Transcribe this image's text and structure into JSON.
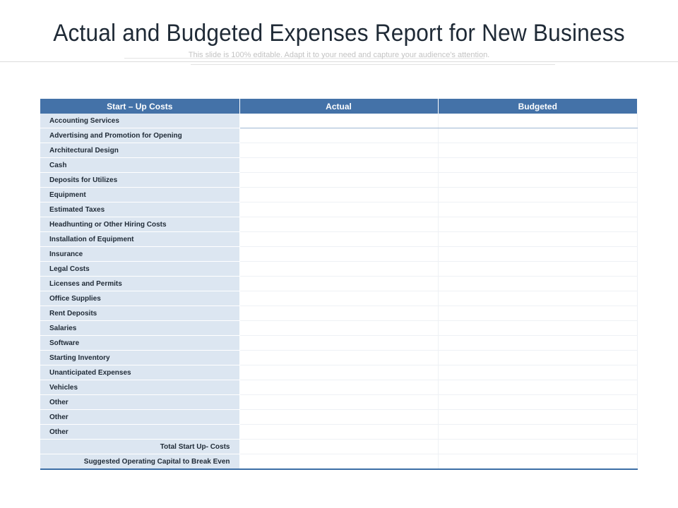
{
  "slide": {
    "title": "Actual and Budgeted Expenses Report for New Business",
    "subtitle": "This slide is 100% editable. Adapt it to your need and capture your audience's attention."
  },
  "table": {
    "headers": [
      "Start – Up Costs",
      "Actual",
      "Budgeted"
    ],
    "rows": [
      "Accounting Services",
      "Advertising and Promotion for Opening",
      "Architectural Design",
      "Cash",
      "Deposits for Utilizes",
      "Equipment",
      "Estimated Taxes",
      "Headhunting or Other Hiring Costs",
      "Installation of Equipment",
      "Insurance",
      "Legal Costs",
      "Licenses  and Permits",
      "Office Supplies",
      "Rent Deposits",
      "Salaries",
      "Software",
      "Starting Inventory",
      "Unanticipated Expenses",
      "Vehicles",
      "Other",
      "Other",
      "Other"
    ],
    "totals": [
      "Total Start Up- Costs",
      "Suggested Operating Capital to Break Even"
    ]
  },
  "colors": {
    "header_bg": "#4472a8",
    "label_bg": "#dce6f1",
    "title_text": "#1f2a36"
  }
}
